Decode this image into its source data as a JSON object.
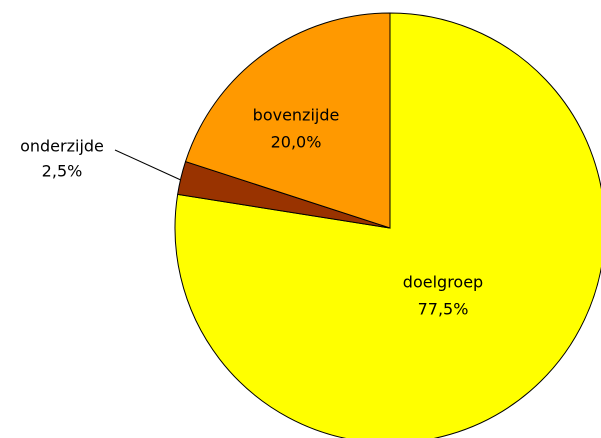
{
  "chart_data": {
    "type": "pie",
    "categories": [
      "doelgroep",
      "onderzijde",
      "bovenzijde"
    ],
    "values": [
      77.5,
      2.5,
      20.0
    ],
    "value_labels": [
      "77,5%",
      "2,5%",
      "20,0%"
    ],
    "colors": [
      "#ffff00",
      "#993300",
      "#ff9900"
    ]
  }
}
